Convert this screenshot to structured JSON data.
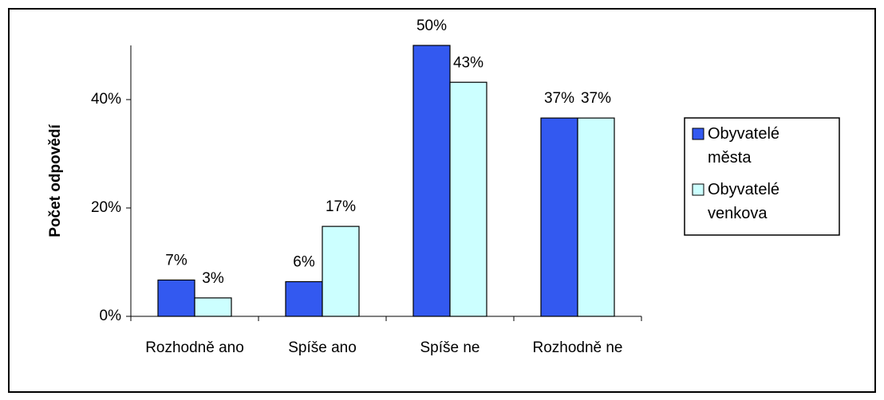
{
  "chart_data": {
    "type": "bar",
    "y_axis_label": "Počet odpovědí",
    "categories": [
      "Rozhodně ano",
      "Spíše ano",
      "Spíše ne",
      "Rozhodně ne"
    ],
    "series": [
      {
        "name": "Obyvatelé města",
        "color": "#3359f0",
        "values": [
          6.7,
          6.4,
          50,
          36.6
        ],
        "value_labels": [
          "7%",
          "6%",
          "50%",
          "37%"
        ]
      },
      {
        "name": "Obyvatelé venkova",
        "color": "#ccffff",
        "values": [
          3.4,
          16.6,
          43.2,
          36.6
        ],
        "value_labels": [
          "3%",
          "17%",
          "43%",
          "37%"
        ]
      }
    ],
    "ylim": [
      0,
      50
    ],
    "yticks": [
      {
        "value": 0,
        "label": "0%"
      },
      {
        "value": 20,
        "label": "20%"
      },
      {
        "value": 40,
        "label": "40%"
      }
    ],
    "legend": "right"
  }
}
